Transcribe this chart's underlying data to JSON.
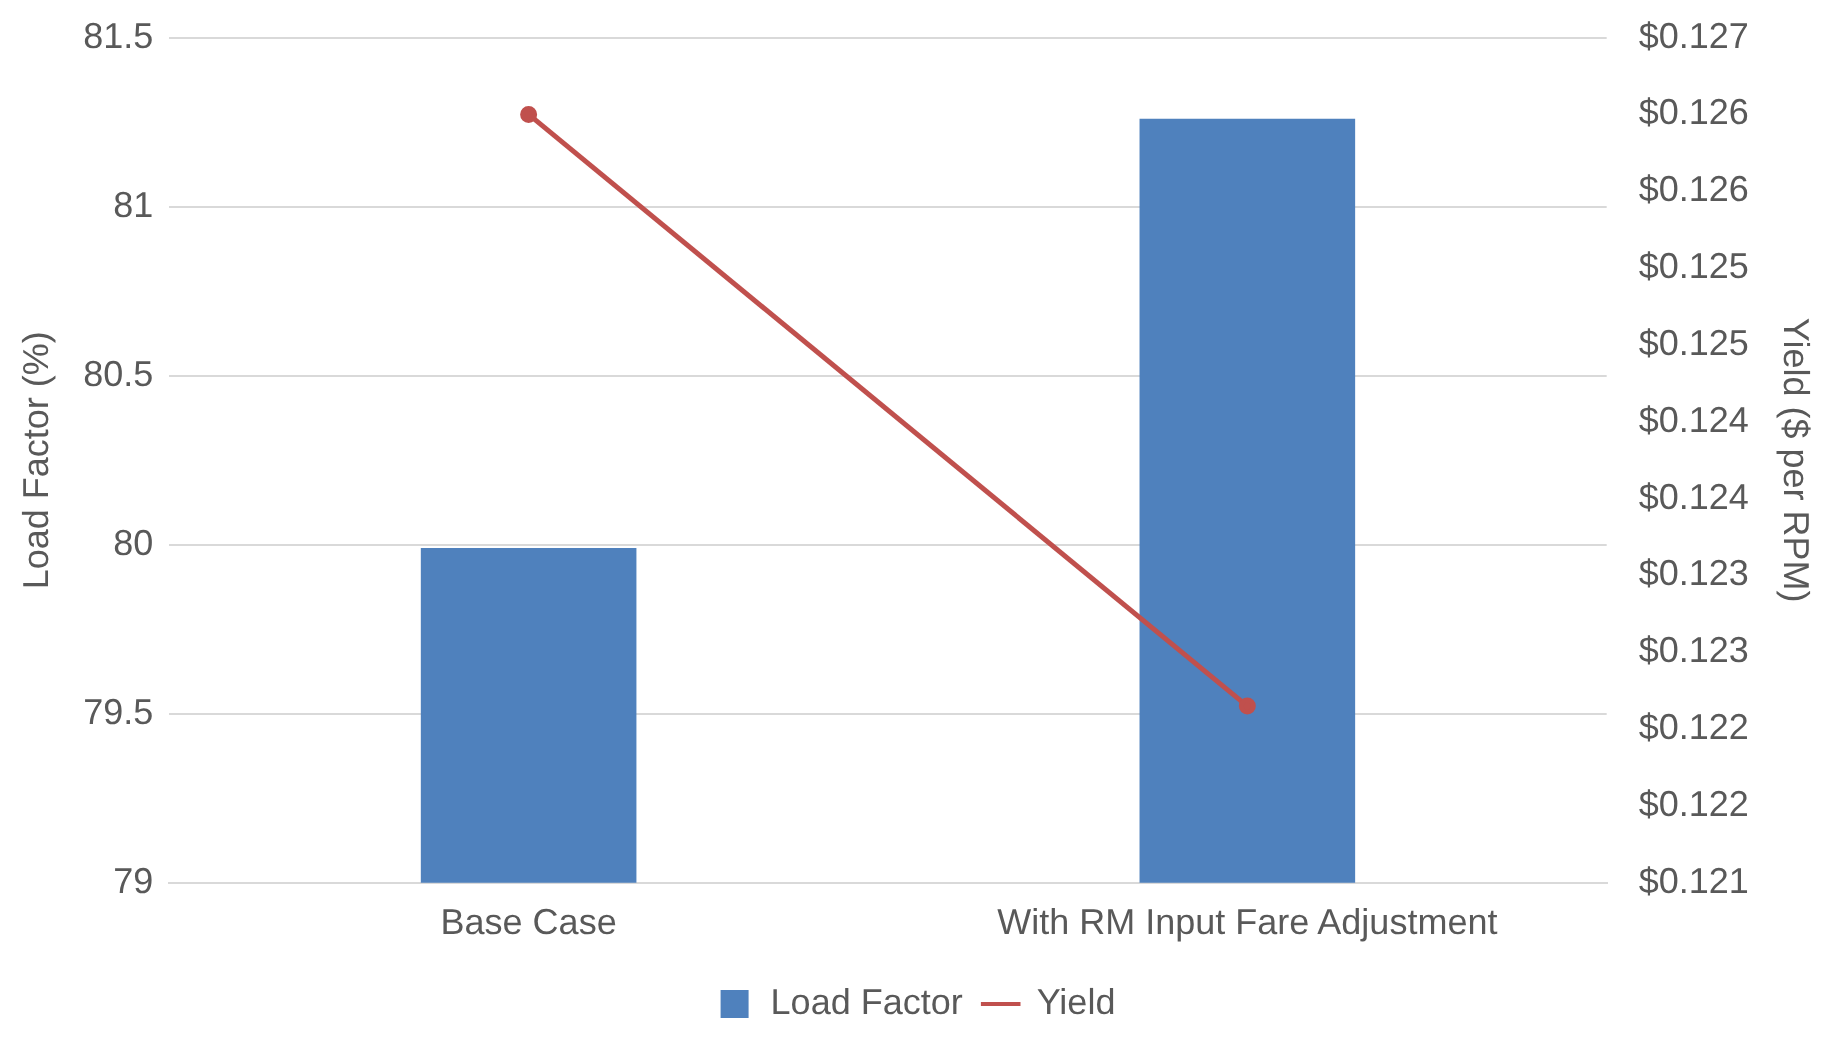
{
  "chart_data": {
    "type": "bar",
    "categories": [
      "Base Case",
      "With RM Input Fare Adjustment"
    ],
    "series": [
      {
        "name": "Load Factor",
        "color": "#4f81bd",
        "values": [
          79.99,
          81.26
        ]
      },
      {
        "name": "Yield",
        "type": "line",
        "axis": "y2",
        "color": "#c0504d",
        "values": [
          0.126,
          0.12215
        ]
      }
    ],
    "ylabel": "Load Factor (%)",
    "y2label": "Yield ($ per RPM)",
    "ylim": [
      79,
      81.5
    ],
    "yticks": [
      79,
      79.5,
      80,
      80.5,
      81,
      81.5
    ],
    "y2lim": [
      0.121,
      0.1265
    ],
    "y2ticks": [
      {
        "value": 0.121,
        "label": "$0.121"
      },
      {
        "value": 0.1215,
        "label": "$0.122"
      },
      {
        "value": 0.122,
        "label": "$0.122"
      },
      {
        "value": 0.1225,
        "label": "$0.123"
      },
      {
        "value": 0.123,
        "label": "$0.123"
      },
      {
        "value": 0.1235,
        "label": "$0.124"
      },
      {
        "value": 0.124,
        "label": "$0.124"
      },
      {
        "value": 0.1245,
        "label": "$0.125"
      },
      {
        "value": 0.125,
        "label": "$0.125"
      },
      {
        "value": 0.1255,
        "label": "$0.126"
      },
      {
        "value": 0.126,
        "label": "$0.126"
      },
      {
        "value": 0.1265,
        "label": "$0.127"
      }
    ],
    "grid": "y",
    "legend": "bottom",
    "marker": "circle"
  }
}
